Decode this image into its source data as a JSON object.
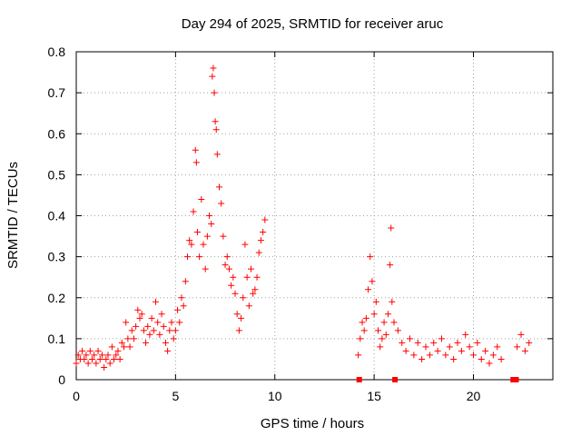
{
  "chart_data": {
    "type": "scatter",
    "title": "Day 294 of 2025, SRMTID for receiver aruc",
    "xlabel": "GPS time / hours",
    "ylabel": "SRMTID / TECUs",
    "xlim": [
      0,
      24
    ],
    "ylim": [
      0,
      0.8
    ],
    "xticks": [
      "0",
      "5",
      "10",
      "15",
      "20"
    ],
    "xtick_values": [
      0,
      5,
      10,
      15,
      20
    ],
    "yticks": [
      "0",
      "0.1",
      "0.2",
      "0.3",
      "0.4",
      "0.5",
      "0.6",
      "0.7",
      "0.8"
    ],
    "ytick_values": [
      0,
      0.1,
      0.2,
      0.3,
      0.4,
      0.5,
      0.6,
      0.7,
      0.8
    ],
    "grid": true,
    "marker": "+",
    "color": "#ff0000",
    "series": [
      {
        "name": "SRMTID",
        "points": [
          [
            0.0,
            0.04
          ],
          [
            0.1,
            0.06
          ],
          [
            0.2,
            0.05
          ],
          [
            0.3,
            0.07
          ],
          [
            0.4,
            0.05
          ],
          [
            0.5,
            0.06
          ],
          [
            0.6,
            0.04
          ],
          [
            0.7,
            0.07
          ],
          [
            0.8,
            0.05
          ],
          [
            0.9,
            0.06
          ],
          [
            1.0,
            0.04
          ],
          [
            1.1,
            0.07
          ],
          [
            1.2,
            0.05
          ],
          [
            1.3,
            0.06
          ],
          [
            1.4,
            0.03
          ],
          [
            1.5,
            0.05
          ],
          [
            1.6,
            0.06
          ],
          [
            1.7,
            0.04
          ],
          [
            1.8,
            0.08
          ],
          [
            1.9,
            0.05
          ],
          [
            2.0,
            0.06
          ],
          [
            2.1,
            0.07
          ],
          [
            2.2,
            0.05
          ],
          [
            2.3,
            0.09
          ],
          [
            2.4,
            0.08
          ],
          [
            2.5,
            0.14
          ],
          [
            2.6,
            0.1
          ],
          [
            2.7,
            0.08
          ],
          [
            2.8,
            0.12
          ],
          [
            2.9,
            0.1
          ],
          [
            3.0,
            0.13
          ],
          [
            3.1,
            0.17
          ],
          [
            3.2,
            0.15
          ],
          [
            3.3,
            0.16
          ],
          [
            3.4,
            0.12
          ],
          [
            3.5,
            0.09
          ],
          [
            3.6,
            0.13
          ],
          [
            3.7,
            0.11
          ],
          [
            3.8,
            0.15
          ],
          [
            3.9,
            0.12
          ],
          [
            4.0,
            0.19
          ],
          [
            4.1,
            0.14
          ],
          [
            4.2,
            0.11
          ],
          [
            4.3,
            0.16
          ],
          [
            4.4,
            0.13
          ],
          [
            4.5,
            0.09
          ],
          [
            4.6,
            0.07
          ],
          [
            4.7,
            0.12
          ],
          [
            4.8,
            0.14
          ],
          [
            4.9,
            0.1
          ],
          [
            5.0,
            0.12
          ],
          [
            5.1,
            0.17
          ],
          [
            5.2,
            0.14
          ],
          [
            5.3,
            0.2
          ],
          [
            5.4,
            0.18
          ],
          [
            5.5,
            0.24
          ],
          [
            5.6,
            0.3
          ],
          [
            5.7,
            0.34
          ],
          [
            5.8,
            0.33
          ],
          [
            5.9,
            0.41
          ],
          [
            6.0,
            0.56
          ],
          [
            6.05,
            0.53
          ],
          [
            6.1,
            0.36
          ],
          [
            6.2,
            0.3
          ],
          [
            6.3,
            0.44
          ],
          [
            6.4,
            0.33
          ],
          [
            6.5,
            0.27
          ],
          [
            6.6,
            0.35
          ],
          [
            6.7,
            0.4
          ],
          [
            6.8,
            0.38
          ],
          [
            6.85,
            0.74
          ],
          [
            6.9,
            0.76
          ],
          [
            6.95,
            0.7
          ],
          [
            7.0,
            0.63
          ],
          [
            7.05,
            0.61
          ],
          [
            7.1,
            0.55
          ],
          [
            7.2,
            0.47
          ],
          [
            7.3,
            0.43
          ],
          [
            7.4,
            0.35
          ],
          [
            7.5,
            0.28
          ],
          [
            7.6,
            0.3
          ],
          [
            7.7,
            0.27
          ],
          [
            7.8,
            0.23
          ],
          [
            7.9,
            0.25
          ],
          [
            8.0,
            0.21
          ],
          [
            8.1,
            0.16
          ],
          [
            8.2,
            0.12
          ],
          [
            8.3,
            0.15
          ],
          [
            8.4,
            0.2
          ],
          [
            8.5,
            0.33
          ],
          [
            8.6,
            0.25
          ],
          [
            8.7,
            0.18
          ],
          [
            8.8,
            0.27
          ],
          [
            8.9,
            0.21
          ],
          [
            9.0,
            0.22
          ],
          [
            9.1,
            0.25
          ],
          [
            9.2,
            0.31
          ],
          [
            9.3,
            0.34
          ],
          [
            9.4,
            0.36
          ],
          [
            9.5,
            0.39
          ],
          [
            14.2,
            0.06
          ],
          [
            14.3,
            0.1
          ],
          [
            14.4,
            0.14
          ],
          [
            14.5,
            0.12
          ],
          [
            14.6,
            0.15
          ],
          [
            14.7,
            0.22
          ],
          [
            14.8,
            0.3
          ],
          [
            14.9,
            0.24
          ],
          [
            15.0,
            0.16
          ],
          [
            15.1,
            0.19
          ],
          [
            15.2,
            0.12
          ],
          [
            15.3,
            0.08
          ],
          [
            15.4,
            0.1
          ],
          [
            15.5,
            0.14
          ],
          [
            15.6,
            0.11
          ],
          [
            15.7,
            0.16
          ],
          [
            15.8,
            0.28
          ],
          [
            15.85,
            0.37
          ],
          [
            15.9,
            0.19
          ],
          [
            16.0,
            0.14
          ],
          [
            16.2,
            0.12
          ],
          [
            16.4,
            0.09
          ],
          [
            16.6,
            0.07
          ],
          [
            16.8,
            0.1
          ],
          [
            17.0,
            0.06
          ],
          [
            17.2,
            0.09
          ],
          [
            17.4,
            0.05
          ],
          [
            17.6,
            0.08
          ],
          [
            17.8,
            0.06
          ],
          [
            18.0,
            0.09
          ],
          [
            18.2,
            0.07
          ],
          [
            18.4,
            0.1
          ],
          [
            18.6,
            0.06
          ],
          [
            18.8,
            0.08
          ],
          [
            19.0,
            0.05
          ],
          [
            19.2,
            0.09
          ],
          [
            19.4,
            0.07
          ],
          [
            19.6,
            0.11
          ],
          [
            19.8,
            0.08
          ],
          [
            20.0,
            0.06
          ],
          [
            20.2,
            0.09
          ],
          [
            20.4,
            0.05
          ],
          [
            20.6,
            0.07
          ],
          [
            20.8,
            0.04
          ],
          [
            21.0,
            0.06
          ],
          [
            21.2,
            0.08
          ],
          [
            21.4,
            0.05
          ],
          [
            22.2,
            0.08
          ],
          [
            22.4,
            0.11
          ],
          [
            22.6,
            0.07
          ],
          [
            22.8,
            0.09
          ]
        ]
      }
    ],
    "flags": [
      [
        14.25,
        0
      ],
      [
        16.05,
        0
      ],
      [
        22.0,
        0
      ],
      [
        22.15,
        0
      ]
    ]
  }
}
